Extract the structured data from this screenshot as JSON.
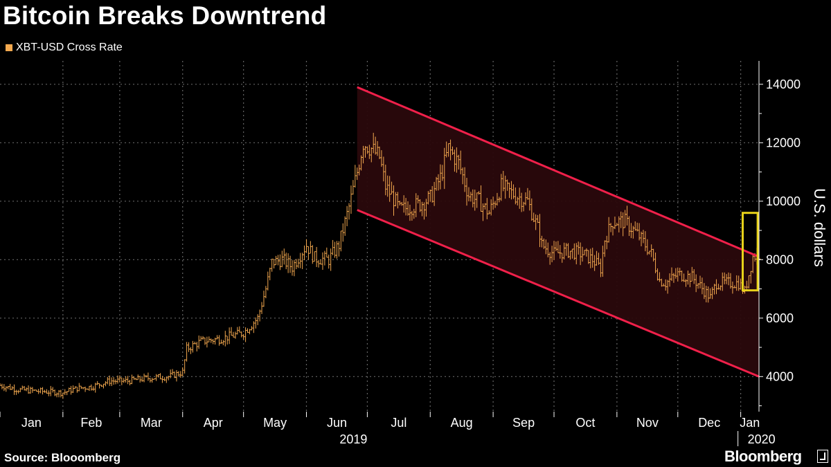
{
  "header": {
    "title": "Bitcoin Breaks Downtrend"
  },
  "footer": {
    "source": "Source: Blooomberg",
    "brand": "Bloomberg"
  },
  "colors": {
    "series": "#f4a94f",
    "channel_line": "#f0204a",
    "channel_fill": "#2a080c",
    "highlight_box": "#e8d21a",
    "grid": "#666666"
  },
  "chart_data": {
    "type": "line",
    "title": "Bitcoin Breaks Downtrend",
    "legend": [
      "XBT-USD Cross Rate"
    ],
    "legend_position": "top-left",
    "ylabel": "U.S. dollars",
    "xlabel": "",
    "ylim": [
      2800,
      14800
    ],
    "yticks": [
      4000,
      6000,
      8000,
      10000,
      12000,
      14000
    ],
    "y_axis_side": "right",
    "grid": true,
    "x_range": [
      "2019-01-01",
      "2020-01-10"
    ],
    "months": [
      "Jan",
      "Feb",
      "Mar",
      "Apr",
      "May",
      "Jun",
      "Jul",
      "Aug",
      "Sep",
      "Oct",
      "Nov",
      "Dec",
      "Jan"
    ],
    "years": [
      "2019",
      "2020"
    ],
    "series": [
      {
        "name": "XBT-USD Cross Rate",
        "x": [
          "2019-01-01",
          "2019-01-10",
          "2019-01-20",
          "2019-02-01",
          "2019-02-08",
          "2019-02-15",
          "2019-02-24",
          "2019-03-05",
          "2019-03-15",
          "2019-03-25",
          "2019-04-01",
          "2019-04-03",
          "2019-04-10",
          "2019-04-20",
          "2019-05-01",
          "2019-05-08",
          "2019-05-12",
          "2019-05-15",
          "2019-05-20",
          "2019-05-25",
          "2019-06-01",
          "2019-06-05",
          "2019-06-12",
          "2019-06-17",
          "2019-06-22",
          "2019-06-26",
          "2019-06-29",
          "2019-07-03",
          "2019-07-07",
          "2019-07-10",
          "2019-07-13",
          "2019-07-17",
          "2019-07-22",
          "2019-07-27",
          "2019-08-01",
          "2019-08-06",
          "2019-08-10",
          "2019-08-15",
          "2019-08-20",
          "2019-08-25",
          "2019-08-30",
          "2019-09-05",
          "2019-09-12",
          "2019-09-18",
          "2019-09-24",
          "2019-09-25",
          "2019-10-01",
          "2019-10-08",
          "2019-10-15",
          "2019-10-20",
          "2019-10-24",
          "2019-10-26",
          "2019-10-30",
          "2019-11-05",
          "2019-11-12",
          "2019-11-18",
          "2019-11-22",
          "2019-11-25",
          "2019-12-01",
          "2019-12-08",
          "2019-12-12",
          "2019-12-17",
          "2019-12-20",
          "2019-12-25",
          "2019-12-31",
          "2020-01-03",
          "2020-01-07",
          "2020-01-10"
        ],
        "values": [
          3700,
          3550,
          3500,
          3450,
          3600,
          3650,
          3850,
          3850,
          3950,
          4000,
          4150,
          4950,
          5200,
          5300,
          5500,
          6000,
          7000,
          7900,
          8000,
          7750,
          8500,
          8050,
          8000,
          8500,
          9800,
          11000,
          12000,
          11800,
          11500,
          10500,
          10200,
          9700,
          9800,
          9900,
          10100,
          10800,
          11800,
          11300,
          10200,
          10000,
          9600,
          10500,
          10200,
          10000,
          8900,
          8500,
          8200,
          8300,
          8200,
          8000,
          7700,
          8700,
          9300,
          9300,
          8800,
          8200,
          7300,
          7200,
          7500,
          7400,
          7100,
          6700,
          7200,
          7200,
          7200,
          6900,
          8100,
          8200
        ]
      }
    ],
    "channel": {
      "upper": {
        "start_date": "2019-06-26",
        "start_value": 13900,
        "end_date": "2020-01-10",
        "end_value": 8100
      },
      "lower": {
        "start_date": "2019-06-26",
        "start_value": 9700,
        "end_date": "2020-01-10",
        "end_value": 4000
      }
    },
    "highlight": {
      "start_date": "2020-01-03",
      "end_date": "2020-01-08",
      "low": 6950,
      "high": 9600
    }
  }
}
